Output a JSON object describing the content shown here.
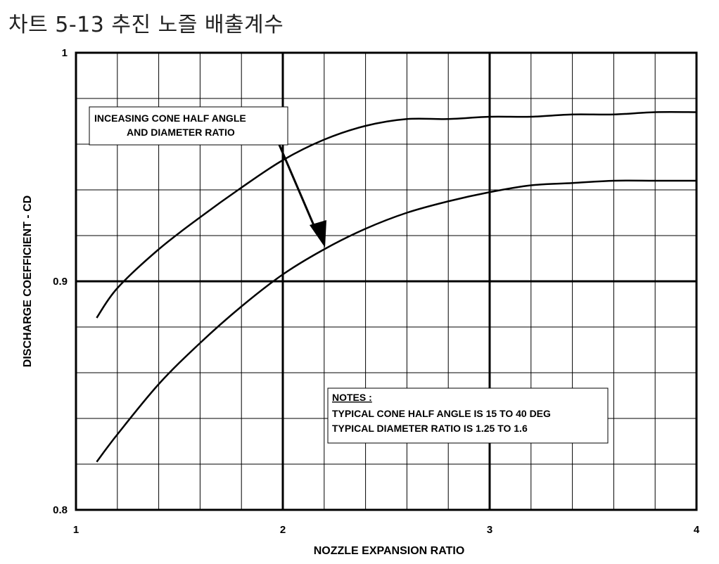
{
  "page_title": "차트 5-13 추진 노즐 배출계수",
  "chart_data": {
    "type": "line",
    "title": "",
    "xlabel": "NOZZLE EXPANSION RATIO",
    "ylabel": "DISCHARGE COEFFICIENT - CD",
    "xlim": [
      1,
      4
    ],
    "ylim": [
      0.8,
      1.0
    ],
    "grid": true,
    "x_ticks": [
      "1",
      "2",
      "3",
      "4"
    ],
    "y_ticks": [
      "0.8",
      "0.9",
      "1"
    ],
    "series": [
      {
        "x": [
          1.1,
          1.2,
          1.4,
          1.6,
          1.8,
          2.0,
          2.2,
          2.4,
          2.6,
          2.8,
          3.0,
          3.2,
          3.4,
          3.6,
          3.8,
          4.0
        ],
        "y": [
          0.884,
          0.897,
          0.914,
          0.928,
          0.941,
          0.953,
          0.962,
          0.968,
          0.971,
          0.971,
          0.972,
          0.972,
          0.973,
          0.973,
          0.974,
          0.974
        ]
      },
      {
        "x": [
          1.1,
          1.2,
          1.4,
          1.6,
          1.8,
          2.0,
          2.2,
          2.4,
          2.6,
          2.8,
          3.0,
          3.2,
          3.4,
          3.6,
          3.8,
          4.0
        ],
        "y": [
          0.821,
          0.833,
          0.855,
          0.873,
          0.889,
          0.903,
          0.914,
          0.923,
          0.93,
          0.935,
          0.939,
          0.942,
          0.943,
          0.944,
          0.944,
          0.944
        ]
      }
    ],
    "annotations": {
      "arrow_label_line1": "INCEASING CONE HALF ANGLE",
      "arrow_label_line2": "AND DIAMETER RATIO",
      "notes_title": "NOTES :",
      "note_line1": "TYPICAL CONE HALF ANGLE IS 15 TO 40 DEG",
      "note_line2": "TYPICAL DIAMETER RATIO IS 1.25 TO 1.6"
    }
  }
}
